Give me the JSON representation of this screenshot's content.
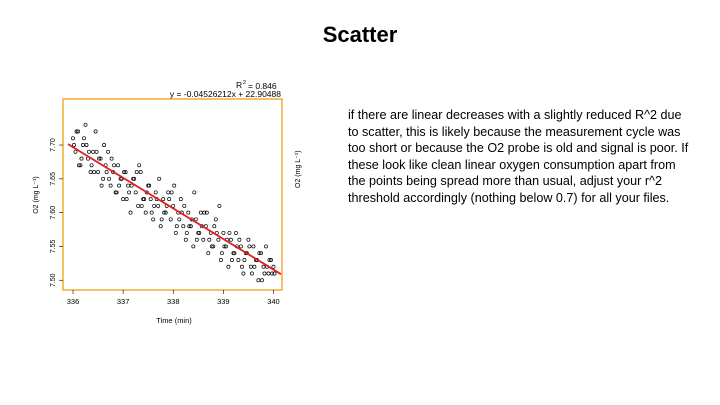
{
  "slide": {
    "title": "Scatter",
    "body": "if there are linear decreases with a slightly reduced R^2 due to scatter, this is likely because the measurement cycle was too short or because the O2 probe is old and signal is poor. If these look like clean linear oxygen consumption apart from the points being spread more than usual, adjust your r^2 threshold accordingly (nothing below 0.7) for all your files."
  },
  "chart_data": {
    "type": "scatter",
    "xlabel": "Time (min)",
    "ylabel": "O2 (mg L⁻¹)",
    "ylabel_right": "O2 (mg L⁻¹)",
    "xlim": [
      335.9,
      340.15
    ],
    "ylim": [
      7.49,
      7.74
    ],
    "xticks": [
      "336",
      "337",
      "338",
      "339",
      "340"
    ],
    "yticks": [
      "7.50",
      "7.55",
      "7.60",
      "7.65",
      "7.70"
    ],
    "equation": "y = -0.04526212x + 22.90488",
    "r2_label": "R",
    "r2_value": "= 0.846",
    "fit": {
      "slope": -0.04526212,
      "intercept": 22.90488
    },
    "colors": {
      "frame": "#f5a623",
      "fit_line": "#e02020",
      "points": "#000000"
    },
    "x": [
      336.0,
      336.05,
      336.1,
      336.15,
      336.2,
      336.25,
      336.3,
      336.35,
      336.4,
      336.45,
      336.5,
      336.55,
      336.6,
      336.65,
      336.7,
      336.75,
      336.8,
      336.85,
      336.9,
      336.95,
      337.0,
      337.05,
      337.1,
      337.15,
      337.2,
      337.25,
      337.3,
      337.35,
      337.4,
      337.45,
      337.5,
      337.55,
      337.6,
      337.65,
      337.7,
      337.75,
      337.8,
      337.85,
      337.9,
      337.95,
      338.0,
      338.05,
      338.1,
      338.15,
      338.2,
      338.25,
      338.3,
      338.35,
      338.4,
      338.45,
      338.5,
      338.55,
      338.6,
      338.65,
      338.7,
      338.75,
      338.8,
      338.85,
      338.9,
      338.95,
      339.0,
      339.05,
      339.1,
      339.15,
      339.2,
      339.25,
      339.3,
      339.35,
      339.4,
      339.45,
      339.5,
      339.55,
      339.6,
      339.65,
      339.7,
      339.75,
      339.8,
      339.85,
      339.9,
      339.95,
      340.0,
      336.02,
      336.12,
      336.22,
      336.32,
      336.42,
      336.52,
      336.62,
      336.72,
      336.82,
      336.92,
      337.02,
      337.12,
      337.22,
      337.32,
      337.42,
      337.52,
      337.62,
      337.72,
      337.82,
      337.92,
      338.02,
      338.12,
      338.22,
      338.32,
      338.42,
      338.52,
      338.62,
      338.72,
      338.82,
      338.92,
      339.02,
      339.12,
      339.22,
      339.32,
      339.42,
      339.52,
      339.62,
      339.72,
      339.82,
      339.92,
      340.02,
      336.07,
      336.17,
      336.27,
      336.37,
      336.47,
      336.57,
      336.67,
      336.77,
      336.87,
      336.97,
      337.07,
      337.17,
      337.27,
      337.37,
      337.47,
      337.57,
      337.67,
      337.77,
      337.87,
      337.97,
      338.07,
      338.17,
      338.27,
      338.37,
      338.47,
      338.57,
      338.67,
      338.77,
      338.87,
      338.97,
      339.07,
      339.17,
      339.27,
      339.37,
      339.47,
      339.57,
      339.67,
      339.77,
      339.87,
      339.97
    ],
    "y": [
      7.71,
      7.69,
      7.72,
      7.67,
      7.7,
      7.73,
      7.68,
      7.66,
      7.69,
      7.72,
      7.66,
      7.68,
      7.65,
      7.67,
      7.69,
      7.64,
      7.66,
      7.63,
      7.67,
      7.65,
      7.62,
      7.66,
      7.64,
      7.6,
      7.65,
      7.63,
      7.61,
      7.66,
      7.62,
      7.6,
      7.64,
      7.62,
      7.59,
      7.63,
      7.61,
      7.58,
      7.62,
      7.6,
      7.63,
      7.59,
      7.61,
      7.57,
      7.6,
      7.62,
      7.58,
      7.56,
      7.6,
      7.58,
      7.55,
      7.59,
      7.57,
      7.6,
      7.56,
      7.58,
      7.54,
      7.57,
      7.55,
      7.59,
      7.56,
      7.53,
      7.57,
      7.55,
      7.52,
      7.56,
      7.54,
      7.57,
      7.53,
      7.55,
      7.51,
      7.54,
      7.56,
      7.52,
      7.55,
      7.53,
      7.5,
      7.54,
      7.52,
      7.55,
      7.51,
      7.53,
      7.52,
      7.7,
      7.67,
      7.71,
      7.69,
      7.66,
      7.68,
      7.7,
      7.65,
      7.67,
      7.64,
      7.66,
      7.63,
      7.65,
      7.67,
      7.62,
      7.64,
      7.61,
      7.65,
      7.6,
      7.62,
      7.64,
      7.59,
      7.61,
      7.58,
      7.63,
      7.57,
      7.6,
      7.56,
      7.58,
      7.61,
      7.55,
      7.57,
      7.54,
      7.56,
      7.53,
      7.55,
      7.52,
      7.54,
      7.51,
      7.53,
      7.51,
      7.72,
      7.68,
      7.7,
      7.67,
      7.69,
      7.64,
      7.66,
      7.68,
      7.63,
      7.65,
      7.62,
      7.64,
      7.66,
      7.61,
      7.63,
      7.6,
      7.62,
      7.59,
      7.61,
      7.63,
      7.58,
      7.6,
      7.57,
      7.59,
      7.56,
      7.58,
      7.6,
      7.55,
      7.57,
      7.54,
      7.56,
      7.53,
      7.55,
      7.52,
      7.54,
      7.51,
      7.53,
      7.5,
      7.52,
      7.51
    ]
  }
}
